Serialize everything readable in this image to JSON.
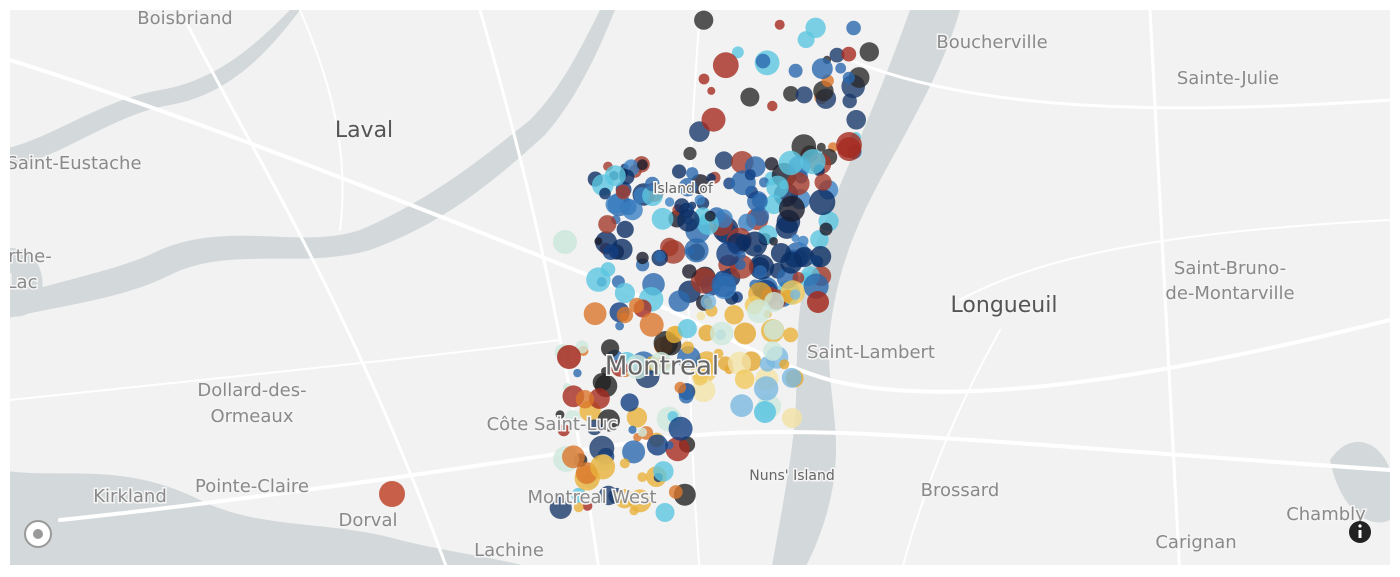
{
  "places": [
    "Boisbriand",
    "Boucherville",
    "Sainte-Julie",
    "Laval",
    "Saint-Eustache",
    "Island of",
    "rthe-",
    "Lac",
    "Saint-Bruno-",
    "de-Montarville",
    "Longueuil",
    "Saint-Lambert",
    "Montreal",
    "Dollard-des-",
    "Ormeaux",
    "Côte Saint-Luc",
    "Kirkland",
    "Pointe-Claire",
    "Dorval",
    "Montreal West",
    "Nuns' Island",
    "Brossard",
    "Lachine",
    "Carignan",
    "Chambly"
  ]
}
